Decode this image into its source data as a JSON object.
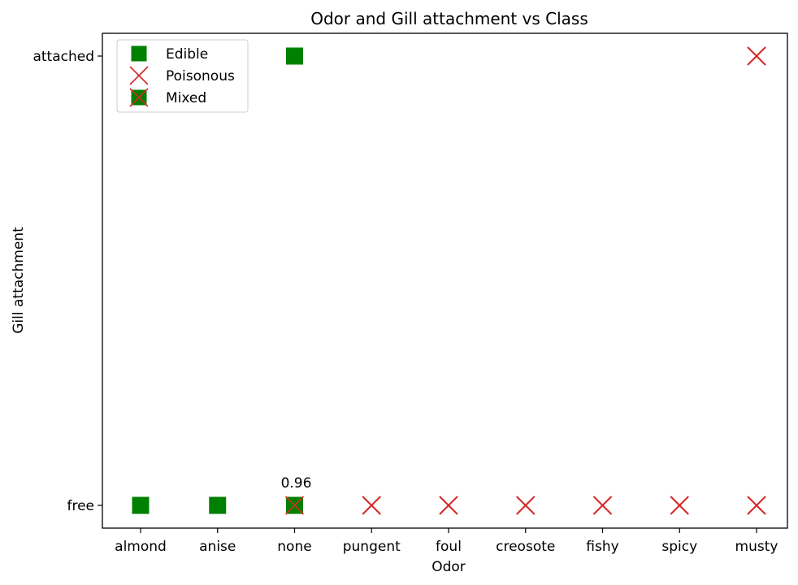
{
  "chart_data": {
    "type": "scatter",
    "title": "Odor and Gill attachment vs Class",
    "xlabel": "Odor",
    "ylabel": "Gill attachment",
    "x_categories": [
      "almond",
      "anise",
      "none",
      "pungent",
      "foul",
      "creosote",
      "fishy",
      "spicy",
      "musty"
    ],
    "y_categories": [
      "free",
      "attached"
    ],
    "legend": {
      "placement": "top-left",
      "entries": [
        {
          "label": "Edible",
          "marker": "square"
        },
        {
          "label": "Poisonous",
          "marker": "x"
        },
        {
          "label": "Mixed",
          "marker": "square-x"
        }
      ]
    },
    "colors": {
      "edible": "#008000",
      "poisonous": "#d62728"
    },
    "points": [
      {
        "x": "almond",
        "y": "free",
        "class": "Edible"
      },
      {
        "x": "anise",
        "y": "free",
        "class": "Edible"
      },
      {
        "x": "none",
        "y": "free",
        "class": "Mixed",
        "annotation": "0.96"
      },
      {
        "x": "pungent",
        "y": "free",
        "class": "Poisonous"
      },
      {
        "x": "foul",
        "y": "free",
        "class": "Poisonous"
      },
      {
        "x": "creosote",
        "y": "free",
        "class": "Poisonous"
      },
      {
        "x": "fishy",
        "y": "free",
        "class": "Poisonous"
      },
      {
        "x": "spicy",
        "y": "free",
        "class": "Poisonous"
      },
      {
        "x": "musty",
        "y": "free",
        "class": "Poisonous"
      },
      {
        "x": "none",
        "y": "attached",
        "class": "Edible"
      },
      {
        "x": "musty",
        "y": "attached",
        "class": "Poisonous"
      }
    ],
    "grid": false
  }
}
